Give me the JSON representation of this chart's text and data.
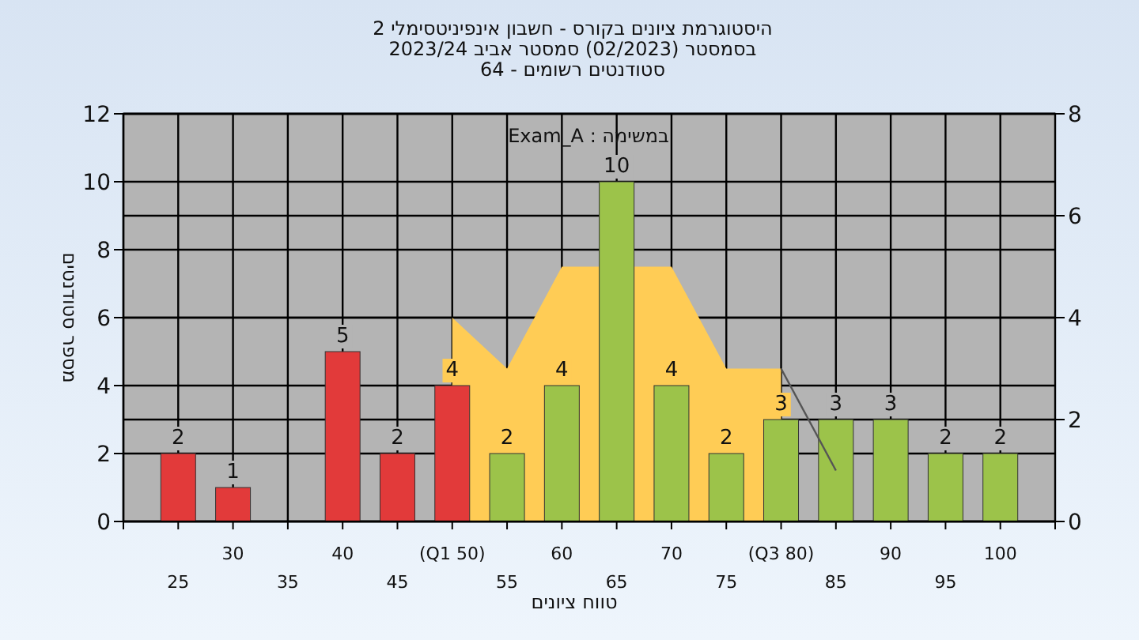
{
  "chart_data": {
    "type": "bar",
    "title": "היסטוגרמת ציונים בקורס - חשבון אינפיניטסימלי 2",
    "subtitle": "בסמסטר  (02/2023)  סמסטר אביב 2023/24\nסטודנטים רשומים - 64",
    "xlabel": "טווח ציונים",
    "ylabel": "מספר סטודנטים",
    "annotations": [
      "במשימה : Exam_A"
    ],
    "categories": [
      "25",
      "30",
      "35",
      "40",
      "45",
      "(Q1 50)",
      "55",
      "60",
      "65",
      "70",
      "75",
      "(Q3 80)",
      "85",
      "90",
      "95",
      "100"
    ],
    "series": [
      {
        "type": "area",
        "axis": "y2",
        "color": "#ffcc55",
        "values": [
          null,
          null,
          null,
          null,
          null,
          4,
          3,
          5,
          null,
          5,
          3,
          3,
          null,
          null,
          null,
          null
        ]
      },
      {
        "type": "line",
        "axis": "y2",
        "color": "#555555",
        "values": [
          null,
          null,
          null,
          null,
          null,
          null,
          null,
          null,
          null,
          null,
          null,
          3,
          1,
          null,
          null,
          null
        ]
      },
      {
        "colors": [
          "#e23a3a",
          "#e23a3a",
          "#e23a3a",
          "#e23a3a",
          "#e23a3a",
          "#e23a3a",
          "#9cc34a",
          "#9cc34a",
          "#9cc34a",
          "#9cc34a",
          "#9cc34a",
          "#9cc34a",
          "#9cc34a",
          "#9cc34a",
          "#9cc34a",
          "#9cc34a"
        ],
        "values": [
          2,
          1,
          null,
          5,
          2,
          4,
          2,
          4,
          10,
          4,
          2,
          3,
          3,
          3,
          2,
          2
        ],
        "value_labels": [
          "2",
          "1",
          null,
          "5",
          "2",
          "4",
          "2",
          "4",
          "10",
          "4",
          "2",
          "3",
          "3",
          "3",
          "2",
          "2"
        ]
      }
    ],
    "ylim": [
      0,
      12
    ],
    "yticks": [
      0,
      2,
      4,
      6,
      8,
      10,
      12
    ],
    "y2lim": [
      0,
      8
    ],
    "y2ticks": [
      0,
      2,
      4,
      6,
      8
    ],
    "grid": true
  }
}
